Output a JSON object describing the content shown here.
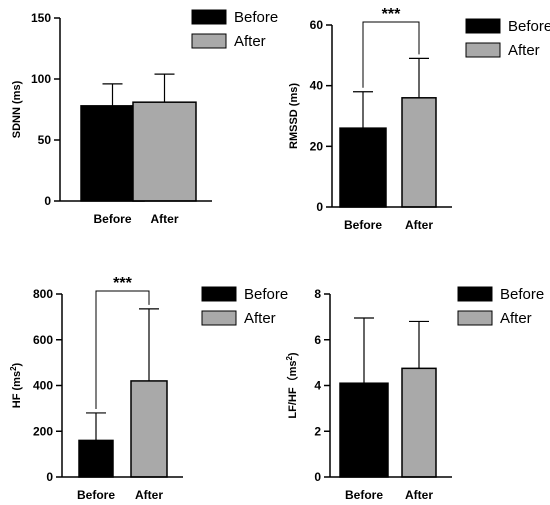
{
  "colors": {
    "before": "#000000",
    "after": "#a9a9a9",
    "axis": "#000000"
  },
  "chart_data": [
    {
      "type": "bar",
      "ylabel_main": "SDNN (ms)",
      "ylabel_sup": "",
      "ylabel_tail": "",
      "categories": [
        "Before",
        "After"
      ],
      "values": [
        78,
        81
      ],
      "errors": [
        18,
        23
      ],
      "ylim": [
        0,
        150
      ],
      "yticks": [
        0,
        50,
        100,
        150
      ],
      "legend": [
        "Before",
        "After"
      ],
      "significance": ""
    },
    {
      "type": "bar",
      "ylabel_main": "RMSSD (ms)",
      "ylabel_sup": "",
      "ylabel_tail": "",
      "categories": [
        "Before",
        "After"
      ],
      "values": [
        26,
        36
      ],
      "errors": [
        12,
        13
      ],
      "ylim": [
        0,
        60
      ],
      "yticks": [
        0,
        20,
        40,
        60
      ],
      "legend": [
        "Before",
        "After"
      ],
      "significance": "***"
    },
    {
      "type": "bar",
      "ylabel_main": "HF (ms",
      "ylabel_sup": "2",
      "ylabel_tail": ")",
      "categories": [
        "Before",
        "After"
      ],
      "values": [
        160,
        420
      ],
      "errors": [
        120,
        315
      ],
      "ylim": [
        0,
        800
      ],
      "yticks": [
        0,
        200,
        400,
        600,
        800
      ],
      "legend": [
        "Before",
        "After"
      ],
      "significance": "***"
    },
    {
      "type": "bar",
      "ylabel_main": "LF/HF（ms",
      "ylabel_sup": "2",
      "ylabel_tail": ")",
      "categories": [
        "Before",
        "After"
      ],
      "values": [
        4.1,
        4.75
      ],
      "errors": [
        2.85,
        2.05
      ],
      "ylim": [
        0,
        8
      ],
      "yticks": [
        0,
        2,
        4,
        6,
        8
      ],
      "legend": [
        "Before",
        "After"
      ],
      "significance": ""
    }
  ]
}
